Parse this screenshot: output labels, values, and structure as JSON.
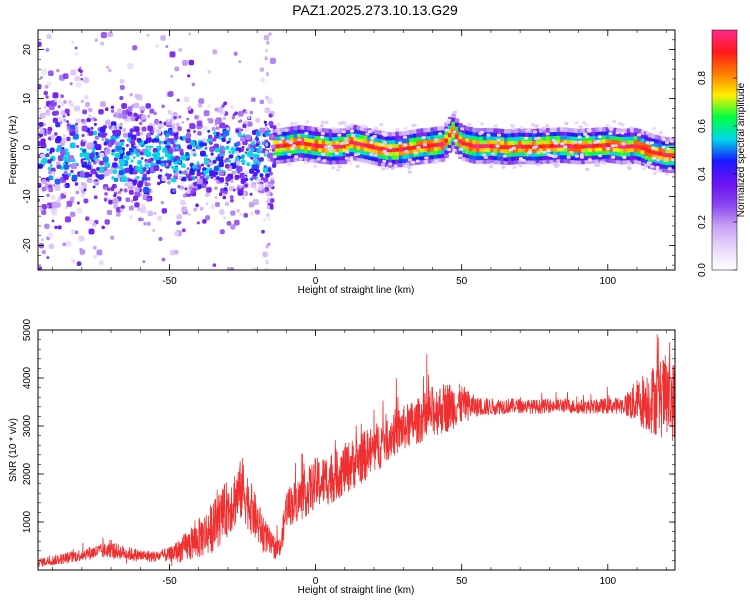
{
  "title": "PAZ1.2025.273.10.13.G29",
  "colors": {
    "snr_line": "#f03030",
    "frame": "#000000",
    "background": "#ffffff",
    "colormap": [
      "#ffffff",
      "#e8d8fb",
      "#c7a2f5",
      "#8a44f0",
      "#6a12f2",
      "#1a1aff",
      "#00d8e8",
      "#00ff40",
      "#ffee00",
      "#ff7a00",
      "#ff1a1a",
      "#ff2a8f"
    ]
  },
  "chart_data": [
    {
      "id": "spectrogram",
      "type": "heatmap",
      "title": "PAZ1.2025.273.10.13.G29",
      "xlabel": "Height of straight line (km)",
      "ylabel": "Frequency (Hz)",
      "xlim": [
        -95,
        123
      ],
      "ylim": [
        -25,
        24
      ],
      "xticks": [
        -50,
        0,
        50,
        100
      ],
      "yticks": [
        -20,
        -10,
        0,
        10,
        20
      ],
      "colorbar": {
        "label": "Normalized spectral amplitude",
        "range": [
          0.0,
          1.0
        ],
        "ticks": [
          0.0,
          0.2,
          0.4,
          0.6,
          0.8
        ]
      },
      "ridge": {
        "description": "dominant spectral line near 0 Hz above ~-15 km, diffuse scatter below",
        "x": [
          -15,
          -10,
          -5,
          0,
          5,
          10,
          12,
          15,
          20,
          25,
          30,
          35,
          40,
          44,
          47,
          50,
          55,
          60,
          65,
          70,
          75,
          80,
          85,
          90,
          95,
          100,
          105,
          110,
          115,
          120,
          123
        ],
        "freq": [
          0.2,
          0.5,
          1.0,
          0.5,
          0.2,
          0.3,
          1.2,
          0.8,
          0.1,
          -0.5,
          -0.3,
          0.2,
          0.5,
          0.8,
          3.5,
          1.0,
          0.3,
          0.4,
          0.1,
          0.3,
          0.2,
          0.4,
          0.5,
          0.2,
          0.4,
          0.6,
          0.2,
          0.4,
          -0.8,
          -1.5,
          -1.5
        ]
      }
    },
    {
      "id": "snr",
      "type": "line",
      "title": "",
      "xlabel": "Height of straight line (km)",
      "ylabel": "SNR (10 * v/v)",
      "xlim": [
        -95,
        123
      ],
      "ylim": [
        0,
        5000
      ],
      "xticks": [
        -50,
        0,
        50,
        100
      ],
      "yticks": [
        1000,
        2000,
        3000,
        4000,
        5000
      ],
      "series": [
        {
          "name": "SNR",
          "x": [
            -95,
            -90,
            -85,
            -80,
            -75,
            -70,
            -65,
            -60,
            -55,
            -50,
            -45,
            -40,
            -35,
            -30,
            -25,
            -20,
            -15,
            -12,
            -10,
            -5,
            0,
            5,
            10,
            15,
            20,
            25,
            30,
            35,
            40,
            45,
            50,
            55,
            60,
            65,
            70,
            75,
            80,
            85,
            90,
            95,
            100,
            105,
            110,
            115,
            120,
            123
          ],
          "values": [
            150,
            200,
            250,
            320,
            380,
            420,
            350,
            300,
            280,
            320,
            450,
            650,
            900,
            1300,
            1700,
            1000,
            500,
            450,
            1300,
            1500,
            1800,
            1900,
            2100,
            2300,
            2500,
            2800,
            2950,
            3100,
            3300,
            3400,
            3450,
            3400,
            3400,
            3420,
            3420,
            3400,
            3420,
            3430,
            3400,
            3400,
            3420,
            3430,
            3500,
            3550,
            3600,
            3500
          ],
          "spread": [
            150,
            180,
            200,
            220,
            250,
            280,
            250,
            220,
            200,
            250,
            500,
            700,
            900,
            1000,
            1100,
            800,
            450,
            350,
            700,
            800,
            900,
            900,
            900,
            900,
            900,
            850,
            800,
            800,
            900,
            900,
            700,
            350,
            300,
            280,
            250,
            250,
            250,
            250,
            250,
            250,
            280,
            300,
            800,
            1200,
            1500,
            1400
          ]
        }
      ]
    }
  ]
}
